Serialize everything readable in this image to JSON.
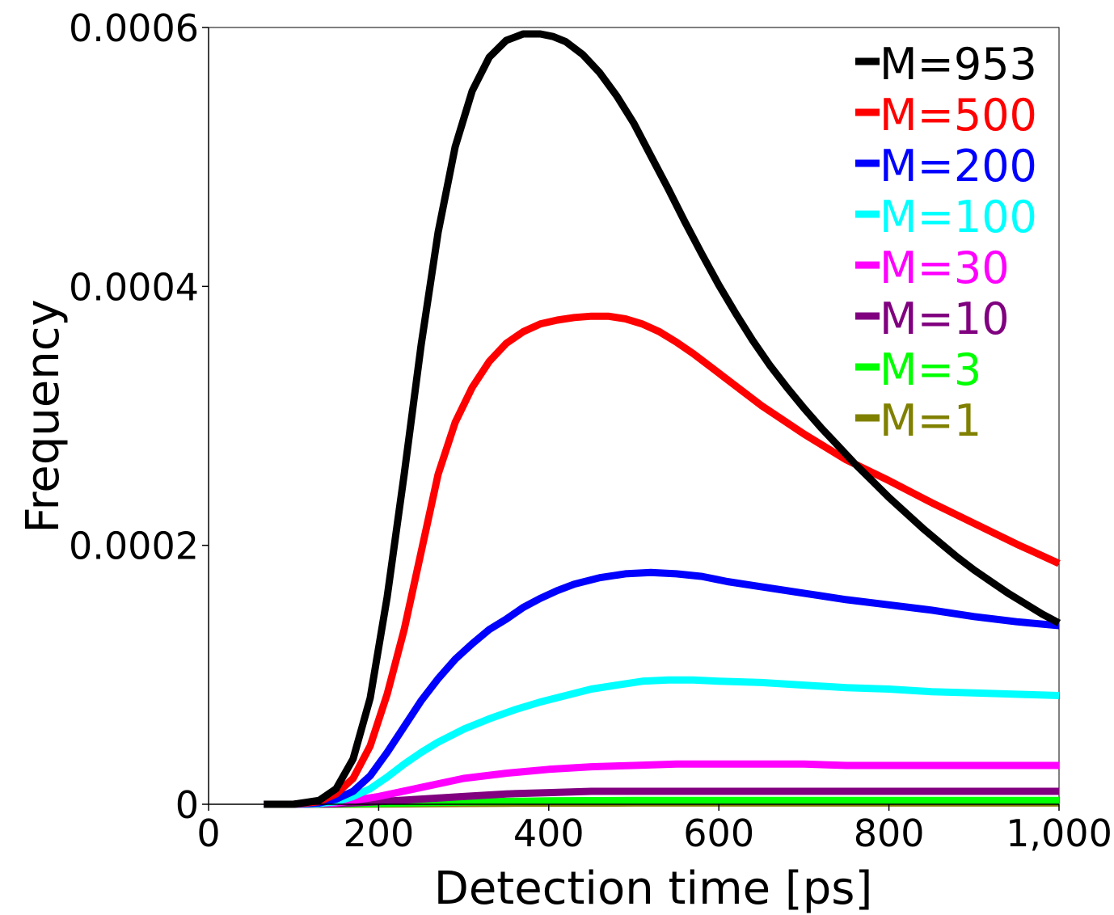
{
  "chart_data": {
    "type": "line",
    "xlabel": "Detection time [ps]",
    "ylabel": "Frequency",
    "xlim": [
      0,
      1000
    ],
    "ylim": [
      0,
      0.0006
    ],
    "x_ticks": [
      0,
      200,
      400,
      600,
      800,
      1000
    ],
    "x_tick_labels": [
      "0",
      "200",
      "400",
      "600",
      "800",
      "1,000"
    ],
    "y_ticks": [
      0,
      0.0002,
      0.0004,
      0.0006
    ],
    "y_tick_labels": [
      "0",
      "0.0002",
      "0.0004",
      "0.0006"
    ],
    "grid": false,
    "legend_position": "top-right",
    "series": [
      {
        "name": "M=953",
        "color": "#000000",
        "x": [
          65,
          100,
          130,
          150,
          170,
          190,
          210,
          230,
          250,
          270,
          290,
          310,
          330,
          350,
          370,
          390,
          405,
          420,
          440,
          460,
          480,
          500,
          520,
          540,
          560,
          580,
          600,
          620,
          640,
          660,
          680,
          700,
          720,
          740,
          760,
          780,
          800,
          820,
          840,
          860,
          880,
          900,
          920,
          940,
          960,
          980,
          1000
        ],
        "y": [
          0,
          0,
          3e-06,
          1.2e-05,
          3.5e-05,
          8.2e-05,
          0.00016,
          0.000255,
          0.000355,
          0.000442,
          0.000508,
          0.000551,
          0.000577,
          0.00059,
          0.000595,
          0.000595,
          0.000593,
          0.000589,
          0.000579,
          0.000565,
          0.000547,
          0.000526,
          0.000501,
          0.000476,
          0.00045,
          0.000425,
          0.000401,
          0.000379,
          0.000358,
          0.000339,
          0.000322,
          0.000306,
          0.000291,
          0.000277,
          0.000263,
          0.00025,
          0.000237,
          0.000225,
          0.000213,
          0.000202,
          0.000191,
          0.000181,
          0.000172,
          0.000163,
          0.000155,
          0.000147,
          0.00014
        ]
      },
      {
        "name": "M=500",
        "color": "#ff0000",
        "x": [
          65,
          100,
          130,
          150,
          170,
          190,
          210,
          230,
          250,
          270,
          290,
          310,
          330,
          350,
          370,
          390,
          410,
          430,
          450,
          470,
          490,
          510,
          530,
          550,
          570,
          600,
          650,
          700,
          750,
          800,
          850,
          900,
          950,
          1000
        ],
        "y": [
          0,
          0,
          2e-06,
          8e-06,
          2e-05,
          4.5e-05,
          8.5e-05,
          0.000135,
          0.000195,
          0.000255,
          0.000295,
          0.000322,
          0.000342,
          0.000356,
          0.000365,
          0.000371,
          0.000374,
          0.000376,
          0.000377,
          0.000377,
          0.000375,
          0.000371,
          0.000365,
          0.000357,
          0.000348,
          0.000333,
          0.000308,
          0.000286,
          0.000266,
          0.00025,
          0.000233,
          0.000217,
          0.000201,
          0.000186
        ]
      },
      {
        "name": "M=200",
        "color": "#0000ff",
        "x": [
          65,
          100,
          130,
          150,
          170,
          190,
          210,
          230,
          250,
          270,
          290,
          310,
          330,
          350,
          370,
          390,
          410,
          430,
          460,
          490,
          520,
          550,
          580,
          610,
          650,
          700,
          750,
          800,
          850,
          900,
          950,
          1000
        ],
        "y": [
          0,
          0,
          1e-06,
          4e-06,
          1e-05,
          2.2e-05,
          4e-05,
          6e-05,
          8e-05,
          9.7e-05,
          0.000112,
          0.000124,
          0.000135,
          0.000143,
          0.000152,
          0.000159,
          0.000165,
          0.00017,
          0.000175,
          0.000178,
          0.000179,
          0.000178,
          0.000176,
          0.000172,
          0.000168,
          0.000163,
          0.000158,
          0.000154,
          0.00015,
          0.000145,
          0.000141,
          0.000138
        ]
      },
      {
        "name": "M=100",
        "color": "#00ffff",
        "x": [
          65,
          100,
          130,
          150,
          170,
          190,
          210,
          230,
          250,
          270,
          300,
          330,
          360,
          390,
          420,
          450,
          480,
          510,
          540,
          570,
          600,
          650,
          700,
          750,
          800,
          850,
          900,
          950,
          1000
        ],
        "y": [
          0,
          0,
          5e-07,
          2e-06,
          6e-06,
          1.2e-05,
          2.1e-05,
          3.1e-05,
          4e-05,
          4.8e-05,
          5.8e-05,
          6.6e-05,
          7.3e-05,
          7.9e-05,
          8.4e-05,
          8.9e-05,
          9.2e-05,
          9.5e-05,
          9.6e-05,
          9.6e-05,
          9.5e-05,
          9.4e-05,
          9.2e-05,
          9e-05,
          8.9e-05,
          8.7e-05,
          8.6e-05,
          8.5e-05,
          8.4e-05
        ]
      },
      {
        "name": "M=30",
        "color": "#ff00ff",
        "x": [
          65,
          100,
          150,
          200,
          250,
          300,
          350,
          400,
          450,
          500,
          550,
          600,
          650,
          700,
          750,
          800,
          850,
          900,
          950,
          1000
        ],
        "y": [
          0,
          0,
          1e-06,
          6e-06,
          1.3e-05,
          2e-05,
          2.4e-05,
          2.7e-05,
          2.9e-05,
          3e-05,
          3.1e-05,
          3.1e-05,
          3.1e-05,
          3.1e-05,
          3e-05,
          3e-05,
          3e-05,
          3e-05,
          3e-05,
          3e-05
        ]
      },
      {
        "name": "M=10",
        "color": "#800080",
        "x": [
          65,
          100,
          150,
          200,
          250,
          300,
          350,
          400,
          450,
          500,
          600,
          700,
          800,
          900,
          1000
        ],
        "y": [
          0,
          0,
          3e-07,
          2e-06,
          4e-06,
          6e-06,
          8e-06,
          9e-06,
          1e-05,
          1e-05,
          1e-05,
          1e-05,
          1e-05,
          1e-05,
          1e-05
        ]
      },
      {
        "name": "M=3",
        "color": "#00ff00",
        "x": [
          65,
          100,
          150,
          200,
          250,
          300,
          350,
          400,
          500,
          600,
          700,
          800,
          900,
          1000
        ],
        "y": [
          0,
          0,
          1e-07,
          6e-07,
          1.2e-06,
          1.8e-06,
          2.2e-06,
          2.6e-06,
          3e-06,
          3e-06,
          3e-06,
          3e-06,
          3e-06,
          3e-06
        ]
      },
      {
        "name": "M=1",
        "color": "#808000",
        "x": [
          65,
          100,
          150,
          200,
          250,
          300,
          350,
          400,
          500,
          600,
          700,
          800,
          900,
          1000
        ],
        "y": [
          0,
          0,
          3e-08,
          2e-07,
          4e-07,
          6e-07,
          8e-07,
          9e-07,
          1e-06,
          1e-06,
          1e-06,
          1e-06,
          1e-06,
          1e-06
        ]
      }
    ]
  }
}
